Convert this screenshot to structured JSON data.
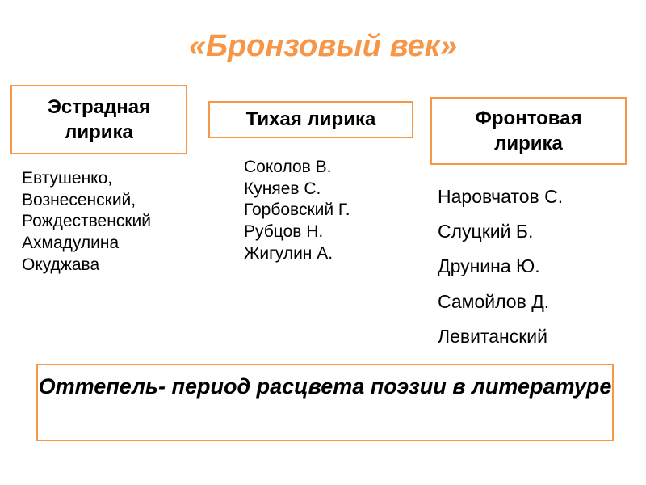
{
  "title": "«Бронзовый век»",
  "columns": [
    {
      "heading": "Эстрадная лирика",
      "poets": [
        "Евтушенко,",
        "Вознесенский,",
        "Рождественский",
        "Ахмадулина",
        "Окуджава"
      ]
    },
    {
      "heading": "Тихая лирика",
      "poets": [
        "Соколов В.",
        "Куняев С.",
        "Горбовский Г.",
        "Рубцов Н.",
        "Жигулин А."
      ]
    },
    {
      "heading": "Фронтовая лирика",
      "poets": [
        "Наровчатов С.",
        "Слуцкий Б.",
        "Друнина Ю.",
        "Самойлов Д.",
        "Левитанский"
      ]
    }
  ],
  "footer": "Оттепель- период расцвета поэзии в литературе",
  "accent_color": "#F79646"
}
